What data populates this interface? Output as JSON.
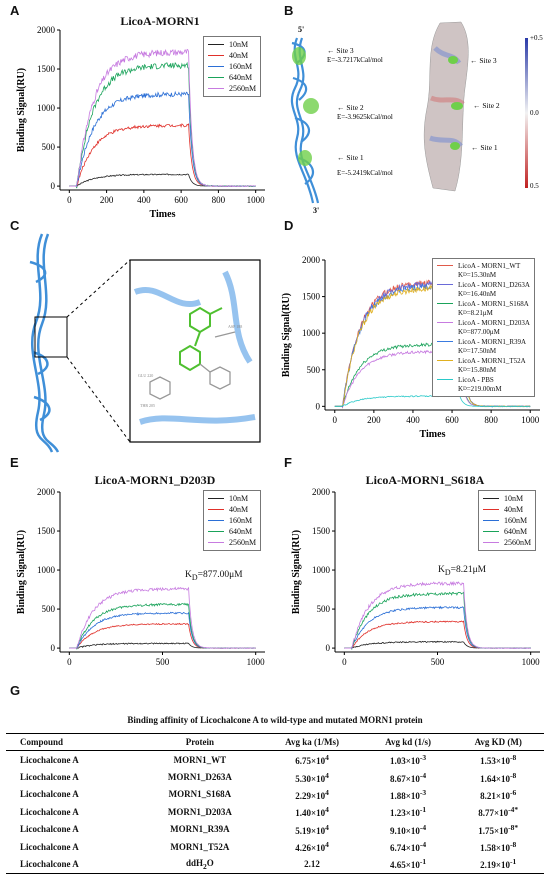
{
  "panels": {
    "A": {
      "letter": "A",
      "title": "LicoA-MORN1",
      "ylabel": "Binding Signal(RU)",
      "xlabel": "Times",
      "legend": [
        "10nM",
        "40nM",
        "160nM",
        "640nM",
        "2560nM"
      ]
    },
    "B": {
      "letter": "B",
      "five_prime": "5'",
      "three_prime": "3'",
      "site3": "Site 3",
      "e3": "E=-3.7217kCal/mol",
      "site2": "Site 2",
      "e2": "E=-3.9625kCal/mol",
      "site1": "Site 1",
      "e1": "E=-5.2419kCal/mol",
      "site3b": "Site 3",
      "site2b": "Site 2",
      "site1b": "Site 1",
      "scale_top": "+0.5",
      "scale_mid": "0.0",
      "scale_bot": "0.5"
    },
    "C": {
      "letter": "C"
    },
    "D": {
      "letter": "D",
      "ylabel": "Binding Signal(RU)",
      "xlabel": "Times",
      "legend": [
        {
          "name": "LicoA - MORN1_WT",
          "kd": "K",
          "kdsub": "D",
          "kdval": "=15.30nM"
        },
        {
          "name": "LicoA - MORN1_D263A",
          "kd": "K",
          "kdsub": "D",
          "kdval": "=16.40nM"
        },
        {
          "name": "LicoA - MORN1_S168A",
          "kd": "K",
          "kdsub": "D",
          "kdval": "=8.21μM"
        },
        {
          "name": "LicoA - MORN1_D203A",
          "kd": "K",
          "kdsub": "D",
          "kdval": "=877.00μM"
        },
        {
          "name": "LicoA - MORN1_R39A",
          "kd": "K",
          "kdsub": "D",
          "kdval": "=17.50nM"
        },
        {
          "name": "LicoA - MORN1_T52A",
          "kd": "K",
          "kdsub": "D",
          "kdval": "=15.80nM"
        },
        {
          "name": "LicoA - PBS",
          "kd": "K",
          "kdsub": "D",
          "kdval": "=219.00mM"
        }
      ]
    },
    "E": {
      "letter": "E",
      "title": "LicoA-MORN1_D203D",
      "ylabel": "Binding Signal(RU)",
      "legend": [
        "10nM",
        "40nM",
        "160nM",
        "640nM",
        "2560nM"
      ],
      "kd": "K",
      "kdsub": "D",
      "kdval": "=877.00μM"
    },
    "F": {
      "letter": "F",
      "title": "LicoA-MORN1_S618A",
      "ylabel": "Binding Signal(RU)",
      "legend": [
        "10nM",
        "40nM",
        "160nM",
        "640nM",
        "2560nM"
      ],
      "kd": "K",
      "kdsub": "D",
      "kdval": "=8.21μM"
    },
    "G": {
      "letter": "G",
      "title": "Binding affinity of Licochalcone A to wild-type and mutated MORN1 protein"
    }
  },
  "chart_data": [
    {
      "id": "A",
      "type": "line",
      "title": "LicoA-MORN1",
      "xlabel": "Times",
      "ylabel": "Binding Signal(RU)",
      "xlim": [
        -50,
        1050
      ],
      "ylim": [
        -50,
        2000
      ],
      "xticks": [
        0,
        200,
        400,
        600,
        800,
        1000
      ],
      "yticks": [
        0,
        500,
        1000,
        1500,
        2000
      ],
      "series": [
        {
          "name": "10nM",
          "color": "#222222",
          "plateau": 150
        },
        {
          "name": "40nM",
          "color": "#e0302a",
          "plateau": 780
        },
        {
          "name": "160nM",
          "color": "#2b6fd6",
          "plateau": 1180
        },
        {
          "name": "640nM",
          "color": "#1aa35a",
          "plateau": 1550
        },
        {
          "name": "2560nM",
          "color": "#c77be0",
          "plateau": 1720
        }
      ]
    },
    {
      "id": "D",
      "type": "line",
      "xlabel": "Times",
      "ylabel": "Binding Signal(RU)",
      "xlim": [
        -50,
        1050
      ],
      "ylim": [
        -50,
        2000
      ],
      "xticks": [
        0,
        200,
        400,
        600,
        800,
        1000
      ],
      "yticks": [
        0,
        500,
        1000,
        1500,
        2000
      ],
      "series": [
        {
          "name": "LicoA - MORN1_WT",
          "color": "#e05a4a",
          "plateau": 1700
        },
        {
          "name": "LicoA - MORN1_D263A",
          "color": "#6a6ad8",
          "plateau": 1680
        },
        {
          "name": "LicoA - MORN1_S168A",
          "color": "#1aa35a",
          "plateau": 850
        },
        {
          "name": "LicoA - MORN1_D203A",
          "color": "#c77be0",
          "plateau": 750
        },
        {
          "name": "LicoA - MORN1_R39A",
          "color": "#3a7be0",
          "plateau": 1650
        },
        {
          "name": "LicoA - MORN1_T52A",
          "color": "#e0b020",
          "plateau": 1620
        },
        {
          "name": "LicoA - PBS",
          "color": "#2ac9c9",
          "plateau": 140
        }
      ]
    },
    {
      "id": "E",
      "type": "line",
      "title": "LicoA-MORN1_D203D",
      "ylabel": "Binding Signal(RU)",
      "xlim": [
        -50,
        1050
      ],
      "ylim": [
        -50,
        2000
      ],
      "xticks": [
        0,
        500,
        1000
      ],
      "yticks": [
        0,
        500,
        1000,
        1500,
        2000
      ],
      "series": [
        {
          "name": "10nM",
          "color": "#222222",
          "plateau": 60
        },
        {
          "name": "40nM",
          "color": "#e0302a",
          "plateau": 310
        },
        {
          "name": "160nM",
          "color": "#2b6fd6",
          "plateau": 450
        },
        {
          "name": "640nM",
          "color": "#1aa35a",
          "plateau": 560
        },
        {
          "name": "2560nM",
          "color": "#c77be0",
          "plateau": 760
        }
      ]
    },
    {
      "id": "F",
      "type": "line",
      "title": "LicoA-MORN1_S618A",
      "ylabel": "Binding Signal(RU)",
      "xlim": [
        -50,
        1050
      ],
      "ylim": [
        -50,
        2000
      ],
      "xticks": [
        0,
        500,
        1000
      ],
      "yticks": [
        0,
        500,
        1000,
        1500,
        2000
      ],
      "series": [
        {
          "name": "10nM",
          "color": "#222222",
          "plateau": 80
        },
        {
          "name": "40nM",
          "color": "#e0302a",
          "plateau": 340
        },
        {
          "name": "160nM",
          "color": "#2b6fd6",
          "plateau": 520
        },
        {
          "name": "640nM",
          "color": "#1aa35a",
          "plateau": 700
        },
        {
          "name": "2560nM",
          "color": "#c77be0",
          "plateau": 830
        }
      ]
    }
  ],
  "table": {
    "headers": [
      "Compound",
      "Protein",
      "Avg ka (1/Ms)",
      "Avg kd (1/s)",
      "Avg KD (M)"
    ],
    "rows": [
      {
        "compound": "Licochalcone A",
        "protein": "MORN1_WT",
        "ka": "6.75×10",
        "ka_exp": "4",
        "kd": "1.03×10",
        "kd_exp": "-3",
        "KD": "1.53×10",
        "KD_exp": "-8"
      },
      {
        "compound": "Licochalcone A",
        "protein": "MORN1_D263A",
        "ka": "5.30×10",
        "ka_exp": "4",
        "kd": "8.67×10",
        "kd_exp": "-4",
        "KD": "1.64×10",
        "KD_exp": "-8"
      },
      {
        "compound": "Licochalcone A",
        "protein": "MORN1_S168A",
        "ka": "2.29×10",
        "ka_exp": "4",
        "kd": "1.88×10",
        "kd_exp": "-3",
        "KD": "8.21×10",
        "KD_exp": "-6"
      },
      {
        "compound": "Licochalcone A",
        "protein": "MORN1_D203A",
        "ka": "1.40×10",
        "ka_exp": "4",
        "kd": "1.23×10",
        "kd_exp": "-1",
        "KD": "8.77×10",
        "KD_exp": "-4*"
      },
      {
        "compound": "Licochalcone A",
        "protein": "MORN1_R39A",
        "ka": "5.19×10",
        "ka_exp": "4",
        "kd": "9.10×10",
        "kd_exp": "-4",
        "KD": "1.75×10",
        "KD_exp": "-8*"
      },
      {
        "compound": "Licochalcone A",
        "protein": "MORN1_T52A",
        "ka": "4.26×10",
        "ka_exp": "4",
        "kd": "6.74×10",
        "kd_exp": "-4",
        "KD": "1.58×10",
        "KD_exp": "-8"
      },
      {
        "compound": "Licochalcone A",
        "protein": "ddH",
        "protein_sub": "2",
        "protein_tail": "O",
        "ka": "2.12",
        "ka_exp": "",
        "kd": "4.65×10",
        "kd_exp": "-1",
        "KD": "2.19×10",
        "KD_exp": "-1"
      }
    ]
  }
}
